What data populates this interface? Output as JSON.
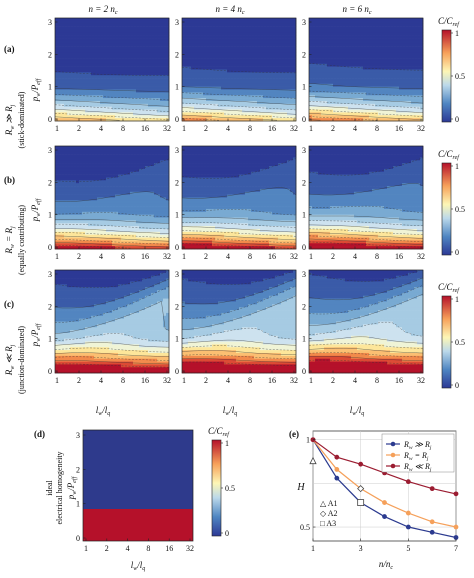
{
  "columns": [
    {
      "label": "n = 2 n",
      "sub": "c"
    },
    {
      "label": "n = 4 n",
      "sub": "c"
    },
    {
      "label": "n = 6 n",
      "sub": "c"
    }
  ],
  "rows": [
    {
      "panel": "(a)",
      "regime": "R",
      "regime_sub": "w",
      "relation": "≫",
      "rhs": "R",
      "rhs_sub": "j",
      "desc": "(stick-dominated)"
    },
    {
      "panel": "(b)",
      "regime": "R",
      "regime_sub": "w",
      "relation": "=",
      "rhs": "R",
      "rhs_sub": "j",
      "desc": "(equally contributing)"
    },
    {
      "panel": "(c)",
      "regime": "R",
      "regime_sub": "w",
      "relation": "≪",
      "rhs": "R",
      "rhs_sub": "j",
      "desc": "(junction-dominated)"
    }
  ],
  "axes": {
    "ylabel_main": "p",
    "ylabel_sub1": "w",
    "ylabel_mid": "/P",
    "ylabel_sub2": "eff",
    "xlabel_main": "l",
    "xlabel_sub1": "w",
    "xlabel_mid": "/l",
    "xlabel_sub2": "q",
    "xticks": [
      "1",
      "2",
      "4",
      "8",
      "16",
      "32"
    ],
    "yticks": [
      "0",
      "1",
      "2",
      "3"
    ]
  },
  "colorbar": {
    "label_main": "C",
    "label_mid": "/C",
    "label_sub": "ref",
    "ticks": [
      "1",
      "0.5",
      "0"
    ]
  },
  "panel_d": {
    "panel": "(d)",
    "label_line1": "ideal",
    "label_line2": "electrical homogeneity",
    "top_color": "#2e3a8c",
    "bottom_color": "#b5112a",
    "boundary_y": 1
  },
  "panel_e": {
    "panel": "(e)",
    "ylabel": "H",
    "xlabel_main": "n",
    "xlabel_mid": "/n",
    "xlabel_sub": "c",
    "xticks": [
      "1",
      "3",
      "5",
      "7"
    ],
    "yticks": [
      "1",
      "0.5"
    ],
    "legend": [
      {
        "main": "R",
        "sub1": "w",
        "rel": "≫",
        "rhs": "R",
        "sub2": "j",
        "color": "#2b3a8f"
      },
      {
        "main": "R",
        "sub1": "w",
        "rel": "=",
        "rhs": "R",
        "sub2": "j",
        "color": "#f5a05a"
      },
      {
        "main": "R",
        "sub1": "w",
        "rel": "≪",
        "rhs": "R",
        "sub2": "j",
        "color": "#9b1c31"
      }
    ],
    "markers": [
      {
        "symbol": "△",
        "label": "A1"
      },
      {
        "symbol": "◇",
        "label": "A2"
      },
      {
        "symbol": "□",
        "label": "A3"
      }
    ]
  },
  "chart_data": {
    "type": "line",
    "xlabel": "n/nc",
    "ylabel": "H",
    "x": [
      1,
      2,
      3,
      4,
      5,
      6,
      7
    ],
    "ylim": [
      0.42,
      1.05
    ],
    "series": [
      {
        "name": "Rw ≫ Rj",
        "values": [
          1.0,
          0.78,
          0.64,
          0.56,
          0.5,
          0.47,
          0.44
        ]
      },
      {
        "name": "Rw = Rj",
        "values": [
          1.0,
          0.83,
          0.72,
          0.64,
          0.58,
          0.53,
          0.5
        ]
      },
      {
        "name": "Rw ≪ Rj",
        "values": [
          1.0,
          0.9,
          0.86,
          0.81,
          0.76,
          0.72,
          0.69
        ]
      }
    ],
    "markers": [
      {
        "name": "A1",
        "x": 1,
        "y": 0.88
      },
      {
        "name": "A2",
        "x": 3,
        "y": 0.72
      },
      {
        "name": "A3",
        "x": 3,
        "y": 0.64
      }
    ]
  }
}
